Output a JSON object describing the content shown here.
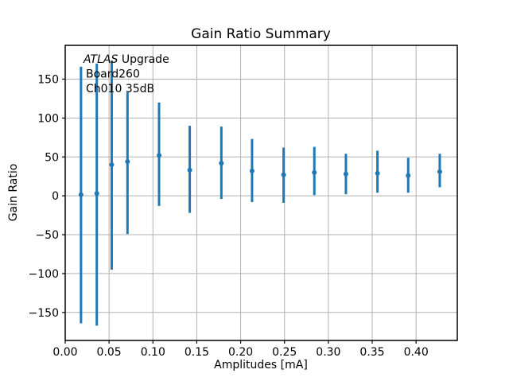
{
  "figure": {
    "background": "#ffffff"
  },
  "chart_data": {
    "type": "scatter",
    "title": "Gain Ratio Summary",
    "xlabel": "Amplitudes [mA]",
    "ylabel": "Gain Ratio",
    "annotation": {
      "line1_italic": "ATLAS",
      "line1_rest": " Upgrade",
      "line2": "Board260",
      "line3": "Ch010 35dB"
    },
    "grid": true,
    "legend": "none",
    "xlim": [
      0,
      0.447
    ],
    "ylim": [
      -186,
      193.5
    ],
    "xticks": {
      "values": [
        0.0,
        0.05,
        0.1,
        0.15,
        0.2,
        0.25,
        0.3,
        0.35,
        0.4
      ],
      "labels": [
        "0.00",
        "0.05",
        "0.10",
        "0.15",
        "0.20",
        "0.25",
        "0.30",
        "0.35",
        "0.40"
      ]
    },
    "yticks": {
      "values": [
        -150,
        -100,
        -50,
        0,
        50,
        100,
        150
      ],
      "labels": [
        "−150",
        "−100",
        "−50",
        "0",
        "50",
        "100",
        "150"
      ]
    },
    "series": [
      {
        "name": "gain-ratio-errorbars",
        "marker": "circle",
        "color": "#1f77b4",
        "x": [
          0.018,
          0.036,
          0.053,
          0.071,
          0.107,
          0.142,
          0.178,
          0.213,
          0.249,
          0.284,
          0.32,
          0.356,
          0.391,
          0.427
        ],
        "y": [
          1.5,
          3,
          40,
          44,
          52,
          33,
          42,
          32,
          27,
          30,
          28,
          29,
          26,
          31
        ],
        "err_top": [
          166,
          170,
          174,
          133,
          120,
          90,
          89,
          73,
          62,
          63,
          54,
          58,
          49,
          54
        ],
        "err_bottom": [
          -164,
          -167,
          -95,
          -49,
          -13,
          -22,
          -4,
          -8,
          -9,
          1,
          2,
          4,
          4,
          11
        ]
      }
    ],
    "colors": {
      "series_blue": "#1f77b4",
      "grid_gray": "#b0b0b0",
      "axis_black": "#000000"
    }
  }
}
